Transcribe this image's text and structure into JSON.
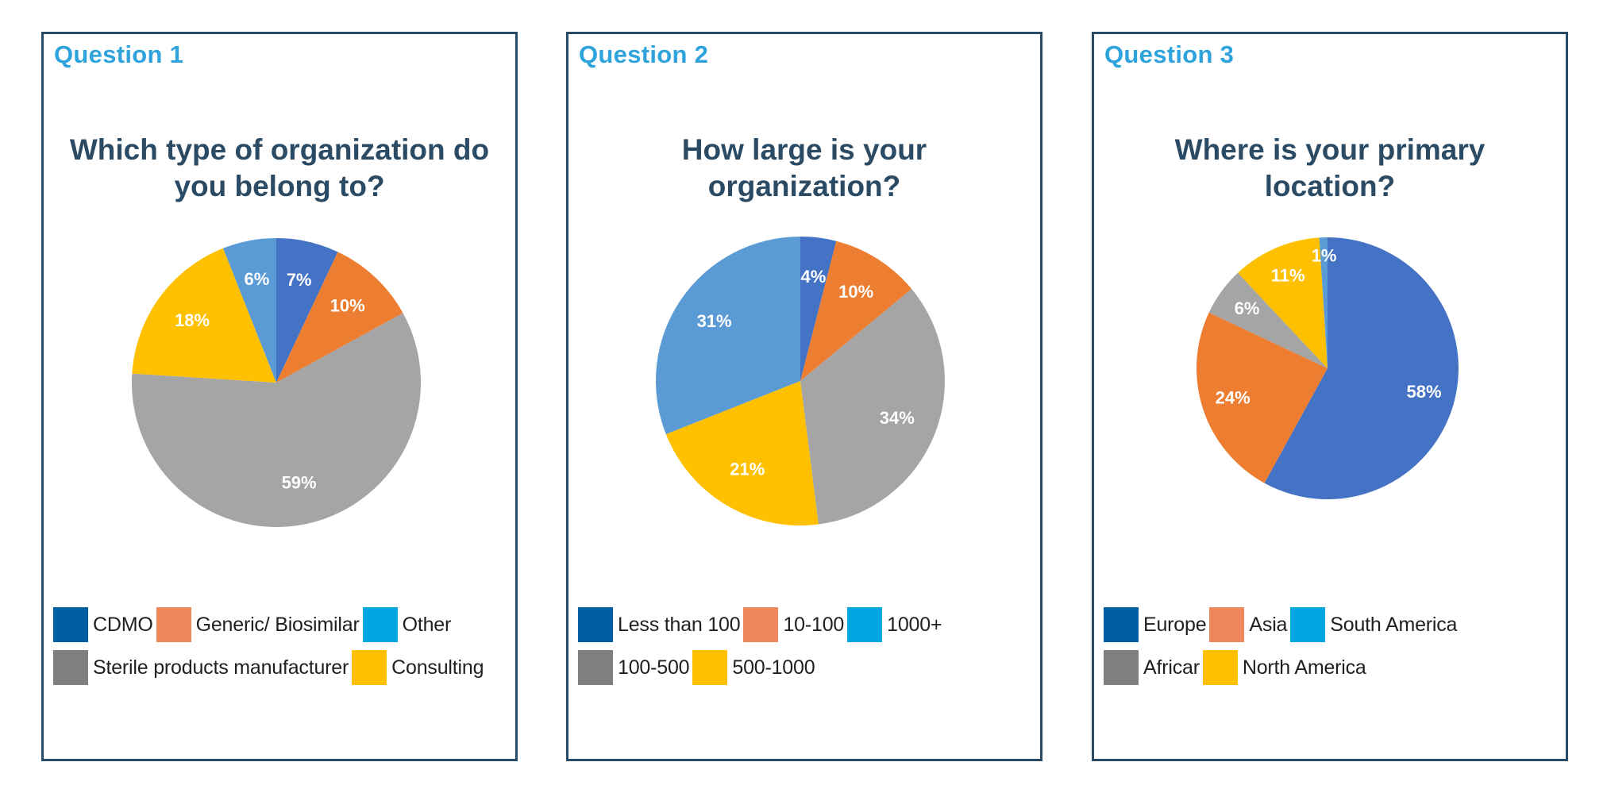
{
  "chart_data": [
    {
      "type": "pie",
      "question_label": "Question 1",
      "title": "Which type of organization do you belong to?",
      "slices": [
        {
          "label": "CDMO",
          "value": 7,
          "display": "7%",
          "color": "#4472c4"
        },
        {
          "label": "Generic/ Biosimilar",
          "value": 10,
          "display": "10%",
          "color": "#ed7d31"
        },
        {
          "label": "Sterile products manufacturer",
          "value": 59,
          "display": "59%",
          "color": "#a5a5a5"
        },
        {
          "label": "Consulting",
          "value": 18,
          "display": "18%",
          "color": "#ffc000"
        },
        {
          "label": "Other",
          "value": 6,
          "display": "6%",
          "color": "#5b9bd5"
        }
      ],
      "legend_rows": [
        [
          {
            "text": "CDMO",
            "color": "#005fa3"
          },
          {
            "text": "Generic/ Biosimilar",
            "color": "#f0875c"
          },
          {
            "text": "Other",
            "color": "#00a5e2"
          }
        ],
        [
          {
            "text": "Sterile products manufacturer",
            "color": "#7f7f7f"
          },
          {
            "text": "Consulting",
            "color": "#ffc000"
          }
        ]
      ]
    },
    {
      "type": "pie",
      "question_label": "Question 2",
      "title": "How large is your organization?",
      "slices": [
        {
          "label": "Less than 100",
          "value": 4,
          "display": "4%",
          "color": "#4472c4"
        },
        {
          "label": "10-100",
          "value": 10,
          "display": "10%",
          "color": "#ed7d31"
        },
        {
          "label": "100-500",
          "value": 34,
          "display": "34%",
          "color": "#a5a5a5"
        },
        {
          "label": "500-1000",
          "value": 21,
          "display": "21%",
          "color": "#ffc000"
        },
        {
          "label": "1000+",
          "value": 31,
          "display": "31%",
          "color": "#5b9bd5"
        }
      ],
      "legend_rows": [
        [
          {
            "text": "Less than 100",
            "color": "#005fa3"
          },
          {
            "text": "10-100",
            "color": "#f0875c"
          },
          {
            "text": "1000+",
            "color": "#00a5e2"
          }
        ],
        [
          {
            "text": "100-500",
            "color": "#7f7f7f"
          },
          {
            "text": "500-1000",
            "color": "#ffc000"
          }
        ]
      ]
    },
    {
      "type": "pie",
      "question_label": "Question 3",
      "title": "Where is your primary location?",
      "slices": [
        {
          "label": "Europe",
          "value": 58,
          "display": "58%",
          "color": "#4472c4"
        },
        {
          "label": "Asia",
          "value": 24,
          "display": "24%",
          "color": "#ed7d31"
        },
        {
          "label": "Africar",
          "value": 6,
          "display": "6%",
          "color": "#a5a5a5"
        },
        {
          "label": "North America",
          "value": 11,
          "display": "11%",
          "color": "#ffc000"
        },
        {
          "label": "South America",
          "value": 1,
          "display": "1%",
          "color": "#5b9bd5"
        }
      ],
      "legend_rows": [
        [
          {
            "text": "Europe",
            "color": "#005fa3"
          },
          {
            "text": "Asia",
            "color": "#f0875c"
          },
          {
            "text": "South America",
            "color": "#00a5e2"
          }
        ],
        [
          {
            "text": "Africar",
            "color": "#7f7f7f"
          },
          {
            "text": "North America",
            "color": "#ffc000"
          }
        ]
      ]
    }
  ]
}
